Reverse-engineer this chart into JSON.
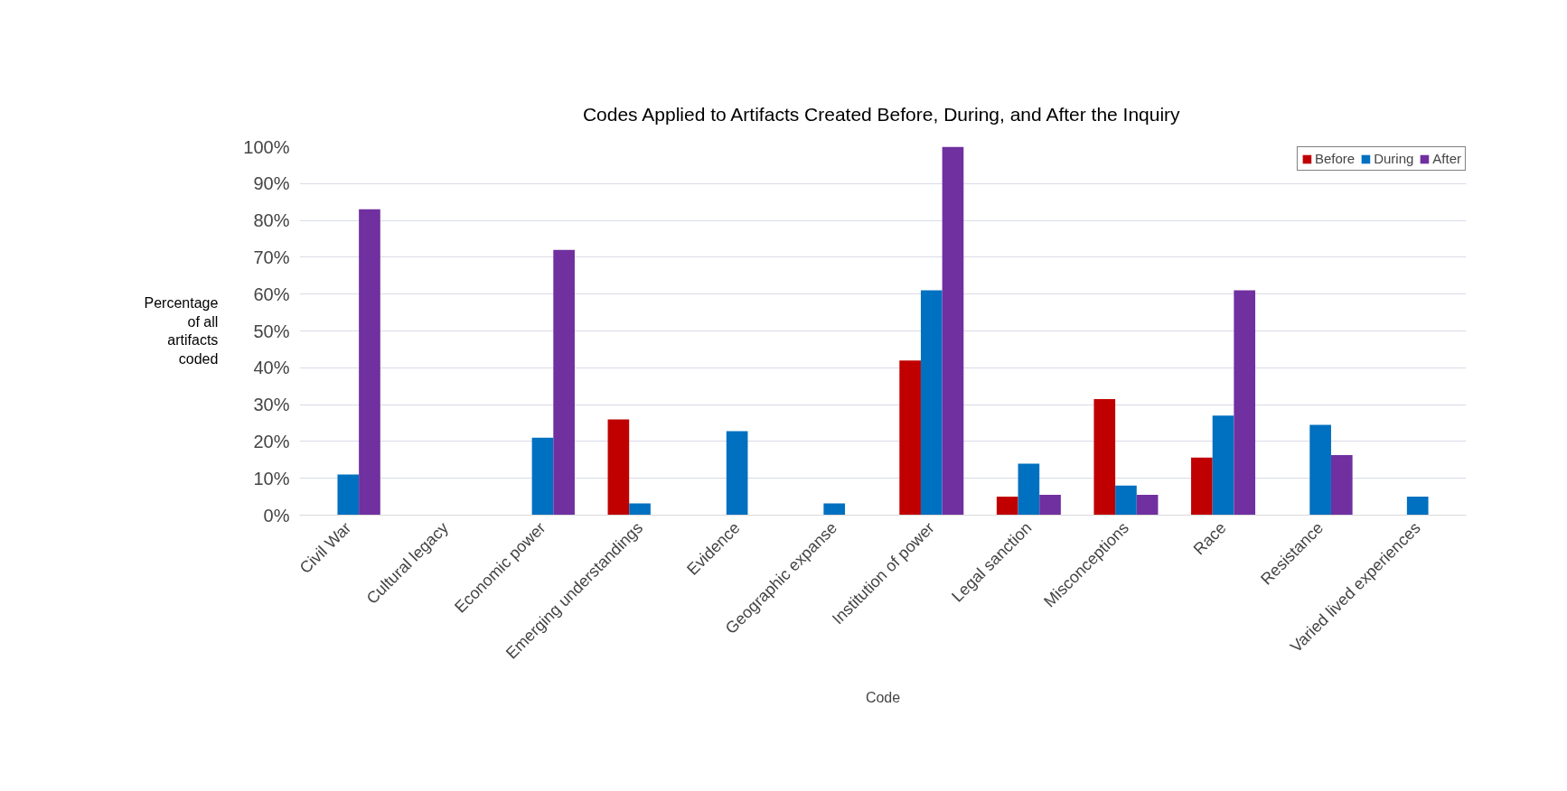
{
  "chart_data": {
    "type": "bar",
    "title": "Codes Applied to Artifacts Created Before, During, and After the Inquiry",
    "xlabel": "Code",
    "ylabel": "Percentage\nof all\nartifacts\ncoded",
    "categories": [
      "Civil War",
      "Cultural legacy",
      "Economic power",
      "Emerging understandings",
      "Evidence",
      "Geographic expanse",
      "Institution of power",
      "Legal sanction",
      "Misconceptions",
      "Race",
      "Resistance",
      "Varied lived experiences"
    ],
    "series": [
      {
        "name": "Before",
        "color": "#c00000",
        "values": [
          0,
          0,
          0,
          26,
          0,
          0,
          42,
          5,
          31.5,
          15.6,
          0,
          0
        ]
      },
      {
        "name": "During",
        "color": "#0070c0",
        "values": [
          11,
          0,
          21,
          3.2,
          22.8,
          3.2,
          61,
          14,
          8,
          27,
          24.5,
          5
        ]
      },
      {
        "name": "After",
        "color": "#7030a0",
        "values": [
          83,
          0,
          72,
          0,
          0,
          0,
          100,
          5.5,
          5.5,
          61,
          16.3,
          0
        ]
      }
    ],
    "ylim": [
      0,
      100
    ],
    "yticks": [
      {
        "value": 0,
        "label": "0%"
      },
      {
        "value": 10,
        "label": "10%"
      },
      {
        "value": 20,
        "label": "20%"
      },
      {
        "value": 30,
        "label": "30%"
      },
      {
        "value": 40,
        "label": "40%"
      },
      {
        "value": 50,
        "label": "50%"
      },
      {
        "value": 60,
        "label": "60%"
      },
      {
        "value": 70,
        "label": "70%"
      },
      {
        "value": 80,
        "label": "80%"
      },
      {
        "value": 90,
        "label": "90%"
      },
      {
        "value": 100,
        "label": "100%"
      }
    ],
    "grid": "y",
    "legend": "top right"
  }
}
